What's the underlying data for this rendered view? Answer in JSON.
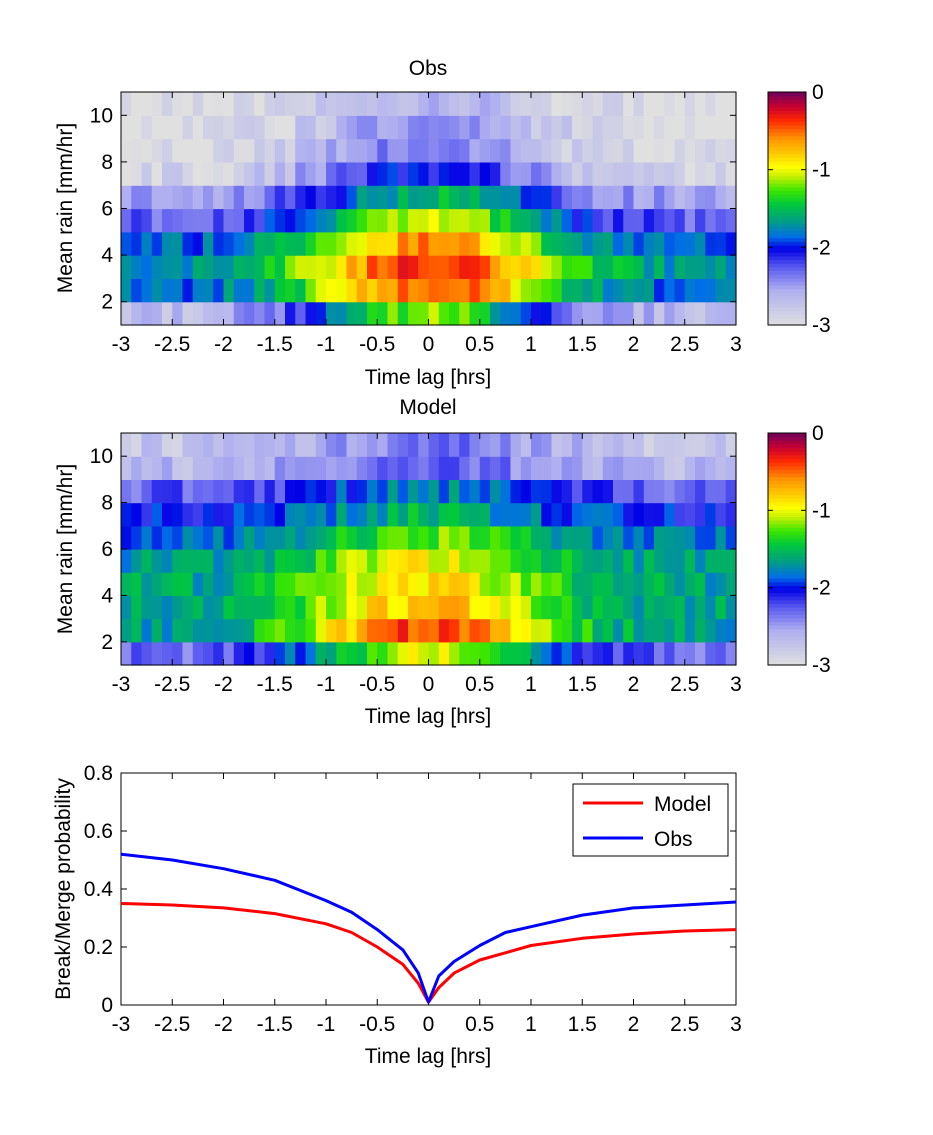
{
  "chart_data": [
    {
      "type": "heatmap",
      "title": "Obs",
      "xlabel": "Time lag [hrs]",
      "ylabel": "Mean rain [mm/hr]",
      "xlim": [
        -3,
        3
      ],
      "ylim": [
        1,
        11
      ],
      "x_ticks": [
        "-3",
        "-2.5",
        "-2",
        "-1.5",
        "-1",
        "-0.5",
        "0",
        "0.5",
        "1",
        "1.5",
        "2",
        "2.5",
        "3"
      ],
      "y_ticks": [
        "2",
        "4",
        "6",
        "8",
        "10"
      ],
      "n_x_bins": 60,
      "rows": [
        {
          "center": 1.5,
          "peak": -1.2,
          "edge": -2.7
        },
        {
          "center": 2.5,
          "peak": -0.4,
          "edge": -1.9
        },
        {
          "center": 3.5,
          "peak": -0.3,
          "edge": -1.7
        },
        {
          "center": 4.5,
          "peak": -0.6,
          "edge": -1.9
        },
        {
          "center": 5.5,
          "peak": -1.05,
          "edge": -2.3
        },
        {
          "center": 6.5,
          "peak": -1.5,
          "edge": -2.55
        },
        {
          "center": 7.5,
          "peak": -2.0,
          "edge": -2.9
        },
        {
          "center": 8.5,
          "peak": -2.3,
          "edge": -3.0
        },
        {
          "center": 9.5,
          "peak": -2.45,
          "edge": -3.0
        },
        {
          "center": 10.5,
          "peak": -2.6,
          "edge": -3.0
        }
      ],
      "colorbar": {
        "min": -3,
        "max": 0,
        "ticks": [
          "0",
          "-1",
          "-2",
          "-3"
        ]
      }
    },
    {
      "type": "heatmap",
      "title": "Model",
      "xlabel": "Time lag [hrs]",
      "ylabel": "Mean rain [mm/hr]",
      "xlim": [
        -3,
        3
      ],
      "ylim": [
        1,
        11
      ],
      "x_ticks": [
        "-3",
        "-2.5",
        "-2",
        "-1.5",
        "-1",
        "-0.5",
        "0",
        "0.5",
        "1",
        "1.5",
        "2",
        "2.5",
        "3"
      ],
      "y_ticks": [
        "2",
        "4",
        "6",
        "8",
        "10"
      ],
      "n_x_bins": 60,
      "rows": [
        {
          "center": 1.5,
          "peak": -1.0,
          "edge": -2.35
        },
        {
          "center": 2.5,
          "peak": -0.4,
          "edge": -1.7
        },
        {
          "center": 3.5,
          "peak": -0.75,
          "edge": -1.65
        },
        {
          "center": 4.5,
          "peak": -0.85,
          "edge": -1.65
        },
        {
          "center": 5.5,
          "peak": -0.95,
          "edge": -1.7
        },
        {
          "center": 6.5,
          "peak": -1.2,
          "edge": -1.85
        },
        {
          "center": 7.5,
          "peak": -1.55,
          "edge": -2.05
        },
        {
          "center": 8.5,
          "peak": -1.75,
          "edge": -2.3
        },
        {
          "center": 9.5,
          "peak": -2.25,
          "edge": -2.65
        },
        {
          "center": 10.5,
          "peak": -2.35,
          "edge": -2.75
        }
      ],
      "colorbar": {
        "min": -3,
        "max": 0,
        "ticks": [
          "0",
          "-1",
          "-2",
          "-3"
        ]
      }
    },
    {
      "type": "line",
      "xlabel": "Time lag [hrs]",
      "ylabel": "Break/Merge probability",
      "xlim": [
        -3,
        3
      ],
      "ylim": [
        0,
        0.8
      ],
      "x_ticks": [
        "-3",
        "-2.5",
        "-2",
        "-1.5",
        "-1",
        "-0.5",
        "0",
        "0.5",
        "1",
        "1.5",
        "2",
        "2.5",
        "3"
      ],
      "y_ticks": [
        "0",
        "0.2",
        "0.4",
        "0.6",
        "0.8"
      ],
      "legend_position": "top-right",
      "series": [
        {
          "name": "Model",
          "color": "#ff0000",
          "x": [
            -3,
            -2.5,
            -2,
            -1.5,
            -1,
            -0.75,
            -0.5,
            -0.25,
            -0.1,
            0,
            0.1,
            0.25,
            0.5,
            0.75,
            1,
            1.5,
            2,
            2.5,
            3
          ],
          "y": [
            0.35,
            0.345,
            0.335,
            0.315,
            0.28,
            0.25,
            0.2,
            0.14,
            0.075,
            0.01,
            0.06,
            0.11,
            0.155,
            0.18,
            0.205,
            0.23,
            0.245,
            0.255,
            0.26
          ]
        },
        {
          "name": "Obs",
          "color": "#0000ff",
          "x": [
            -3,
            -2.5,
            -2,
            -1.5,
            -1,
            -0.75,
            -0.5,
            -0.25,
            -0.1,
            0,
            0.1,
            0.25,
            0.5,
            0.75,
            1,
            1.5,
            2,
            2.5,
            3
          ],
          "y": [
            0.52,
            0.5,
            0.47,
            0.43,
            0.36,
            0.32,
            0.26,
            0.19,
            0.11,
            0.01,
            0.1,
            0.15,
            0.205,
            0.25,
            0.27,
            0.31,
            0.335,
            0.345,
            0.355
          ]
        }
      ]
    }
  ]
}
